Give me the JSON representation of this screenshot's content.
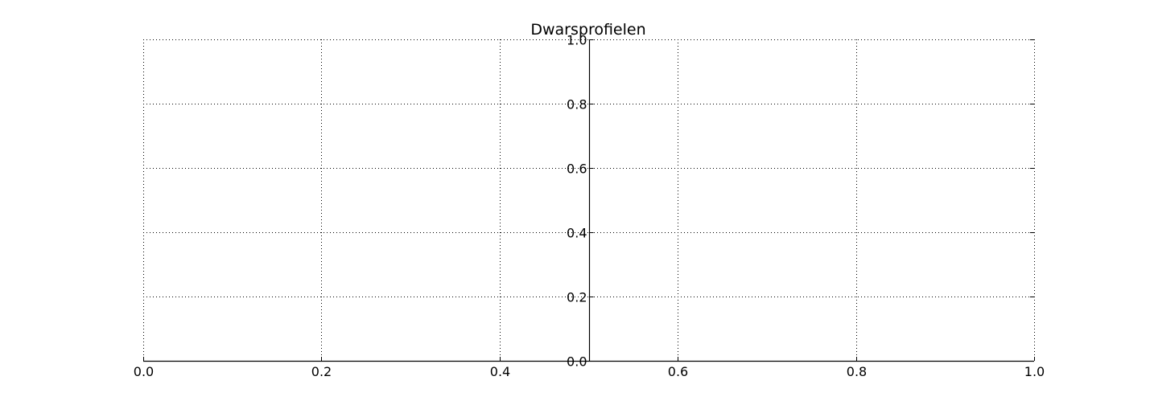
{
  "chart_data": {
    "type": "line",
    "title": "Dwarsprofielen",
    "xlabel": "",
    "ylabel": "",
    "xlim": [
      0.0,
      1.0
    ],
    "ylim": [
      0.0,
      1.0
    ],
    "x_ticks": [
      "0.0",
      "0.2",
      "0.4",
      "0.6",
      "0.8",
      "1.0"
    ],
    "y_ticks": [
      "0.0",
      "0.2",
      "0.4",
      "0.6",
      "0.8",
      "1.0"
    ],
    "grid": true,
    "grid_style": "dotted",
    "y_axis_at_x": 0.5,
    "series": []
  }
}
